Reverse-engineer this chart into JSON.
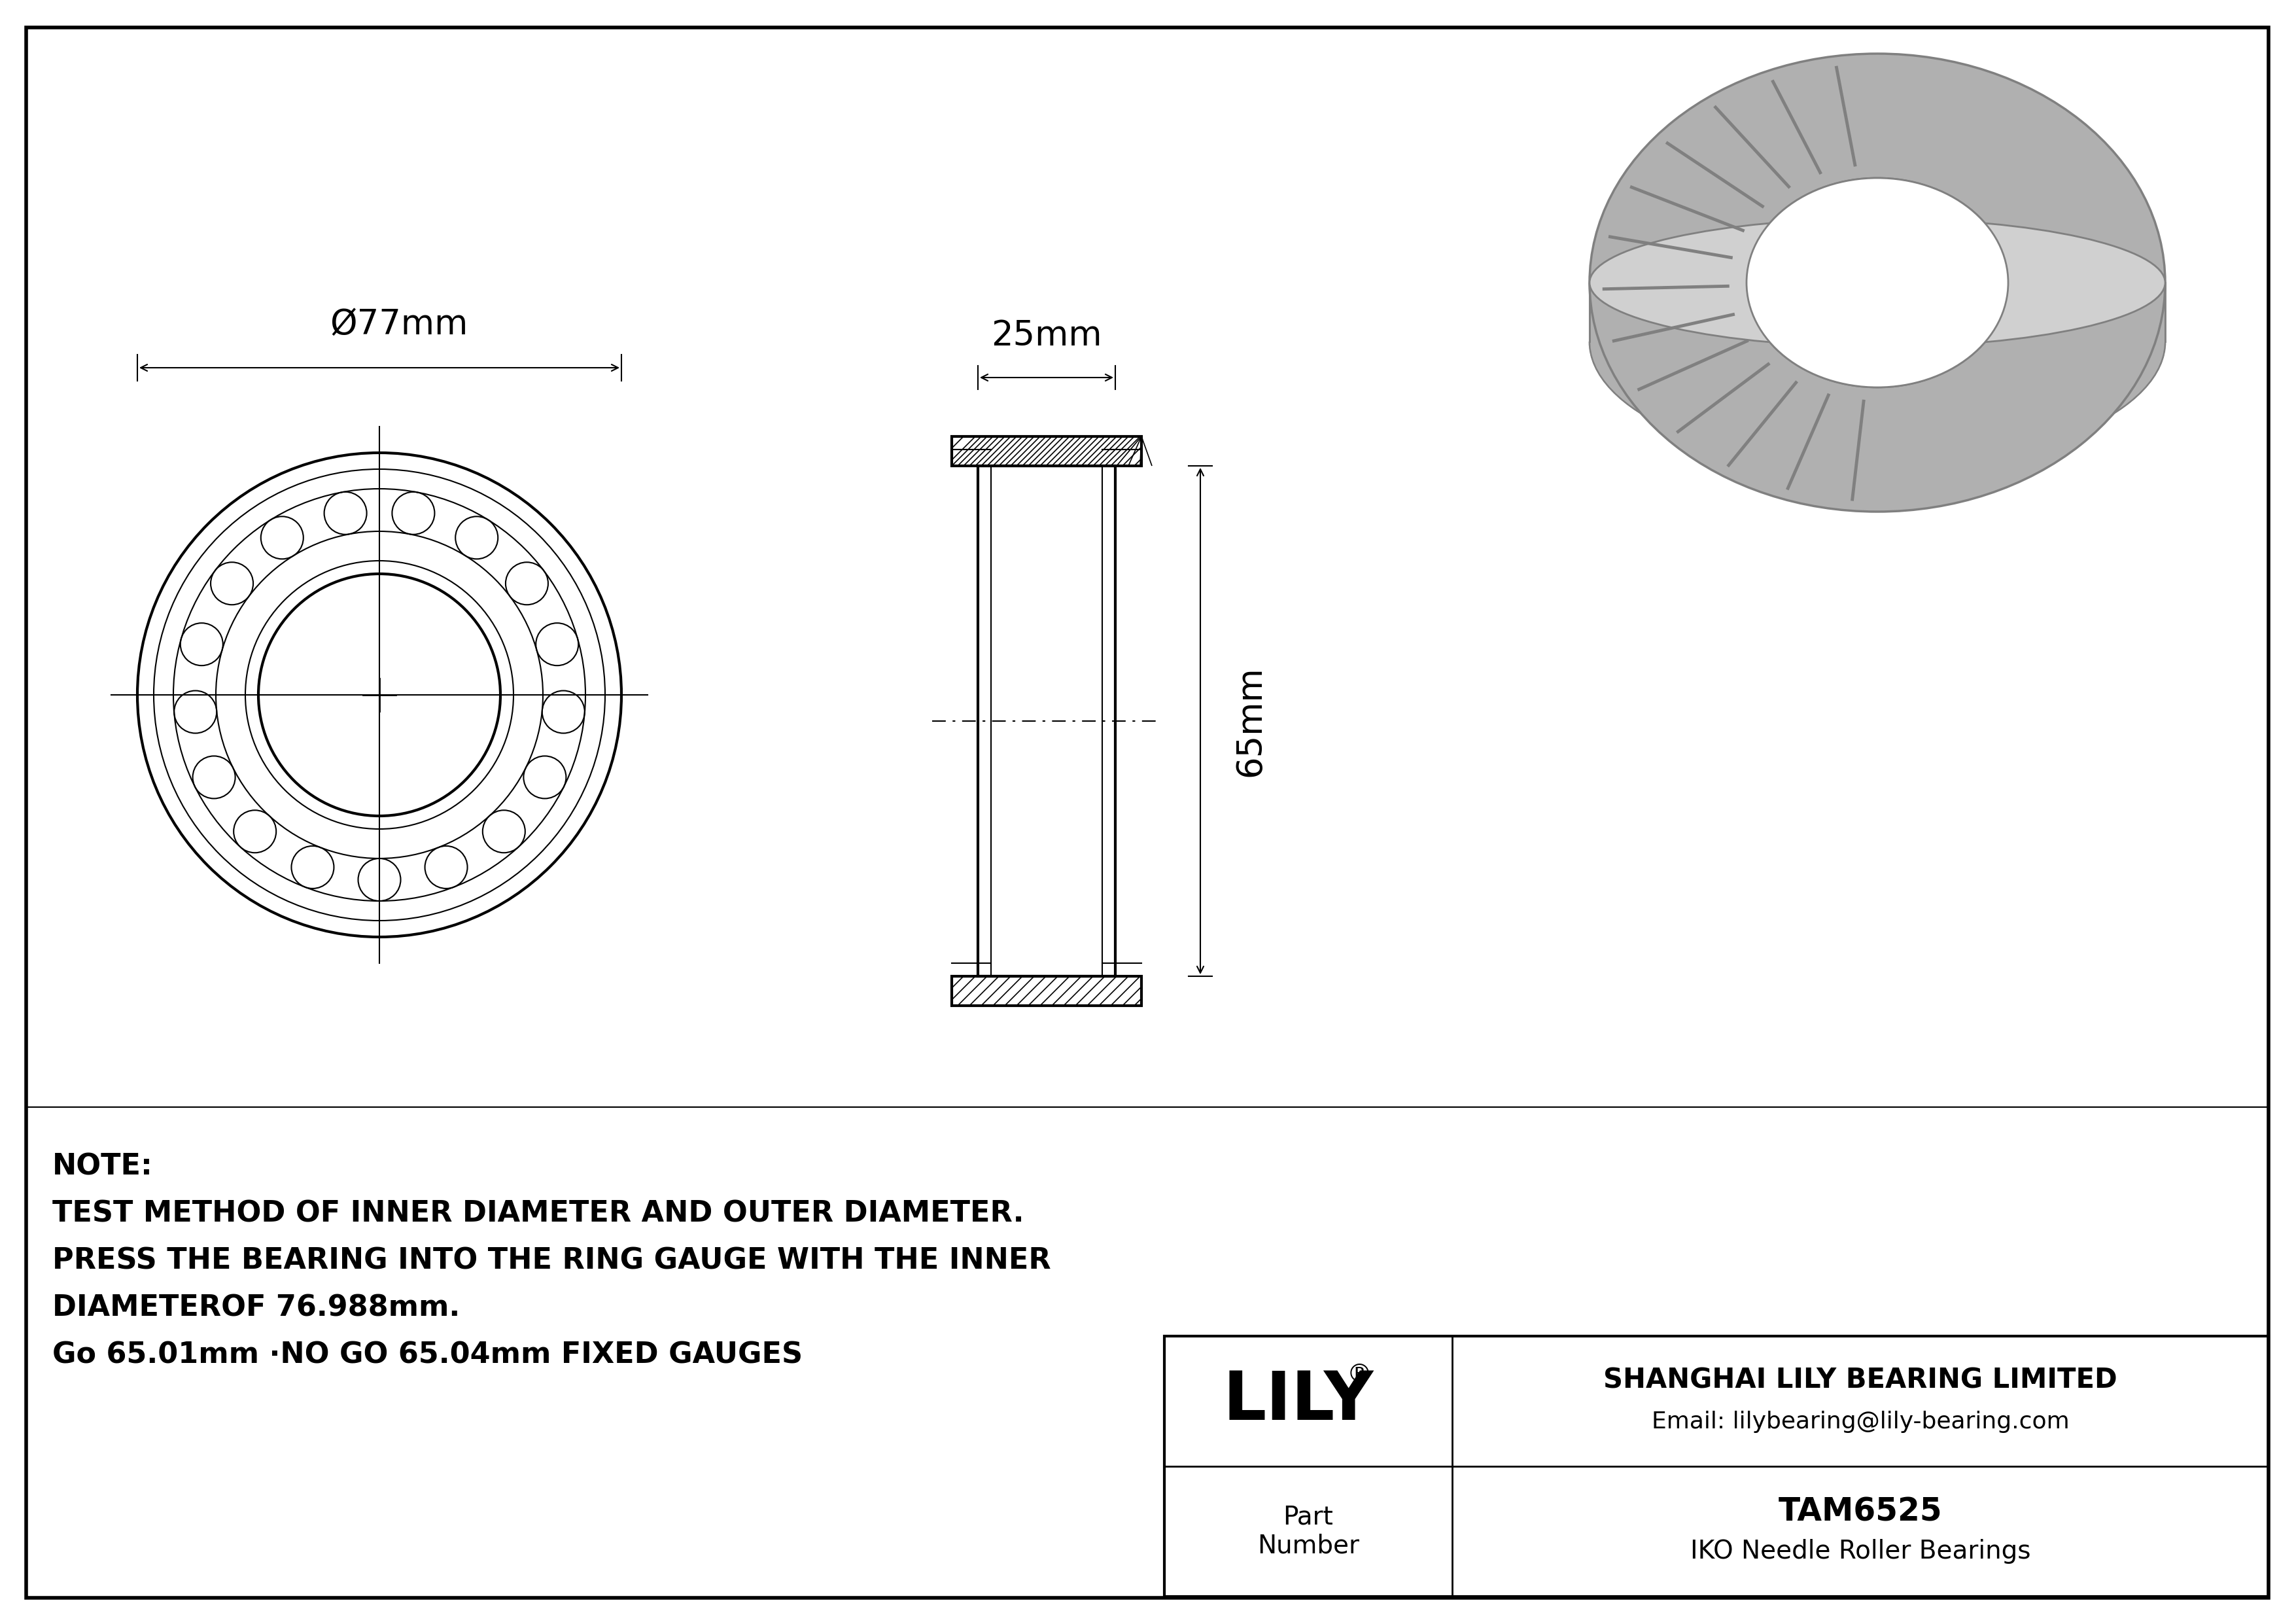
{
  "bg_color": "#ffffff",
  "line_color": "#000000",
  "gray_fill": "#b0b0b0",
  "gray_dark": "#808080",
  "gray_light": "#d0d0d0",
  "note_line1": "NOTE:",
  "note_line2": "TEST METHOD OF INNER DIAMETER AND OUTER DIAMETER.",
  "note_line3": "PRESS THE BEARING INTO THE RING GAUGE WITH THE INNER",
  "note_line4": "DIAMETEROF 76.988mm.",
  "note_line5": "Go 65.01mm ·NO GO 65.04mm FIXED GAUGES",
  "dim_diameter": "Ø77mm",
  "dim_width": "25mm",
  "dim_height": "65mm",
  "company_name": "SHANGHAI LILY BEARING LIMITED",
  "company_email": "Email: lilybearing@lily-bearing.com",
  "part_number": "TAM6525",
  "bearing_type": "IKO Needle Roller Bearings",
  "logo_text": "LILY",
  "logo_reg": "®",
  "part_label_1": "Part",
  "part_label_2": "Number"
}
